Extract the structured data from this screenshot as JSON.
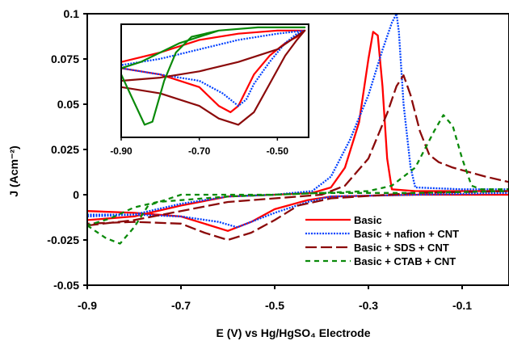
{
  "chart_data": {
    "type": "line",
    "title": "",
    "xlabel": "E (V) vs Hg/HgSO₄ Electrode",
    "ylabel": "J (Acm⁻²)",
    "xlim": [
      -0.9,
      0.0
    ],
    "ylim": [
      -0.05,
      0.1
    ],
    "xticks": [
      "-0.9",
      "-0.7",
      "-0.5",
      "-0.3",
      "-0.1"
    ],
    "yticks": [
      "-0.05",
      "-0.025",
      "0",
      "0.025",
      "0.05",
      "0.075",
      "0.1"
    ],
    "grid": false,
    "legend_position": "bottom-right",
    "series": [
      {
        "name": "Basic",
        "color": "#ff0000",
        "style": "solid",
        "forward": [
          [
            -0.9,
            -0.014
          ],
          [
            -0.8,
            -0.012
          ],
          [
            -0.7,
            -0.006
          ],
          [
            -0.6,
            -0.001
          ],
          [
            -0.5,
            0.0
          ],
          [
            -0.42,
            0.001
          ],
          [
            -0.38,
            0.004
          ],
          [
            -0.35,
            0.015
          ],
          [
            -0.32,
            0.04
          ],
          [
            -0.3,
            0.075
          ],
          [
            -0.29,
            0.09
          ],
          [
            -0.28,
            0.088
          ],
          [
            -0.27,
            0.06
          ],
          [
            -0.26,
            0.02
          ],
          [
            -0.25,
            0.003
          ],
          [
            -0.2,
            0.002
          ],
          [
            -0.1,
            0.002
          ],
          [
            0.0,
            0.002
          ]
        ],
        "reverse": [
          [
            0.0,
            0.0
          ],
          [
            -0.2,
            0.0
          ],
          [
            -0.38,
            -0.001
          ],
          [
            -0.43,
            -0.003
          ],
          [
            -0.5,
            -0.008
          ],
          [
            -0.55,
            -0.015
          ],
          [
            -0.6,
            -0.02
          ],
          [
            -0.65,
            -0.016
          ],
          [
            -0.7,
            -0.012
          ],
          [
            -0.8,
            -0.01
          ],
          [
            -0.9,
            -0.009
          ]
        ]
      },
      {
        "name": "Basic + nafion + CNT",
        "color": "#0040ff",
        "style": "dotted",
        "forward": [
          [
            -0.9,
            -0.012
          ],
          [
            -0.8,
            -0.011
          ],
          [
            -0.7,
            -0.005
          ],
          [
            -0.6,
            -0.001
          ],
          [
            -0.5,
            0.0
          ],
          [
            -0.42,
            0.002
          ],
          [
            -0.38,
            0.01
          ],
          [
            -0.34,
            0.03
          ],
          [
            -0.3,
            0.055
          ],
          [
            -0.27,
            0.08
          ],
          [
            -0.25,
            0.095
          ],
          [
            -0.24,
            0.1
          ],
          [
            -0.235,
            0.09
          ],
          [
            -0.225,
            0.05
          ],
          [
            -0.21,
            0.015
          ],
          [
            -0.2,
            0.004
          ],
          [
            -0.1,
            0.003
          ],
          [
            0.0,
            0.003
          ]
        ],
        "reverse": [
          [
            0.0,
            0.001
          ],
          [
            -0.2,
            0.0
          ],
          [
            -0.38,
            -0.001
          ],
          [
            -0.43,
            -0.004
          ],
          [
            -0.5,
            -0.01
          ],
          [
            -0.55,
            -0.015
          ],
          [
            -0.58,
            -0.018
          ],
          [
            -0.62,
            -0.015
          ],
          [
            -0.7,
            -0.012
          ],
          [
            -0.8,
            -0.011
          ],
          [
            -0.9,
            -0.011
          ]
        ]
      },
      {
        "name": "Basic + SDS + CNT",
        "color": "#8b0a0a",
        "style": "dashed",
        "forward": [
          [
            -0.9,
            -0.017
          ],
          [
            -0.8,
            -0.014
          ],
          [
            -0.7,
            -0.009
          ],
          [
            -0.6,
            -0.004
          ],
          [
            -0.5,
            -0.002
          ],
          [
            -0.4,
            0.0
          ],
          [
            -0.35,
            0.005
          ],
          [
            -0.3,
            0.02
          ],
          [
            -0.26,
            0.045
          ],
          [
            -0.24,
            0.06
          ],
          [
            -0.225,
            0.066
          ],
          [
            -0.21,
            0.055
          ],
          [
            -0.19,
            0.035
          ],
          [
            -0.17,
            0.022
          ],
          [
            -0.15,
            0.018
          ],
          [
            -0.12,
            0.015
          ],
          [
            -0.05,
            0.01
          ],
          [
            0.0,
            0.007
          ]
        ],
        "reverse": [
          [
            0.0,
            0.002
          ],
          [
            -0.2,
            0.001
          ],
          [
            -0.38,
            -0.002
          ],
          [
            -0.45,
            -0.006
          ],
          [
            -0.5,
            -0.014
          ],
          [
            -0.55,
            -0.021
          ],
          [
            -0.6,
            -0.025
          ],
          [
            -0.65,
            -0.021
          ],
          [
            -0.7,
            -0.016
          ],
          [
            -0.8,
            -0.015
          ],
          [
            -0.9,
            -0.016
          ]
        ]
      },
      {
        "name": "Basic + CTAB + CNT",
        "color": "#0a8a0a",
        "style": "dashed-short",
        "forward": [
          [
            -0.9,
            -0.017
          ],
          [
            -0.86,
            -0.024
          ],
          [
            -0.83,
            -0.027
          ],
          [
            -0.8,
            -0.018
          ],
          [
            -0.77,
            -0.006
          ],
          [
            -0.7,
            0.0
          ],
          [
            -0.6,
            0.0
          ],
          [
            -0.5,
            0.0
          ],
          [
            -0.4,
            0.001
          ],
          [
            -0.3,
            0.002
          ],
          [
            -0.25,
            0.005
          ],
          [
            -0.2,
            0.015
          ],
          [
            -0.16,
            0.035
          ],
          [
            -0.14,
            0.044
          ],
          [
            -0.12,
            0.038
          ],
          [
            -0.1,
            0.02
          ],
          [
            -0.08,
            0.005
          ],
          [
            -0.06,
            0.003
          ],
          [
            0.0,
            0.003
          ]
        ],
        "reverse": [
          [
            0.0,
            0.002
          ],
          [
            -0.2,
            0.001
          ],
          [
            -0.4,
            0.001
          ],
          [
            -0.5,
            0.0
          ],
          [
            -0.6,
            -0.001
          ],
          [
            -0.7,
            -0.003
          ],
          [
            -0.75,
            -0.004
          ],
          [
            -0.8,
            -0.007
          ],
          [
            -0.85,
            -0.013
          ],
          [
            -0.9,
            -0.017
          ]
        ]
      }
    ],
    "inset": {
      "xlim": [
        -0.9,
        -0.42
      ],
      "ylim": [
        -0.032,
        0.004
      ],
      "xticks": [
        "-0.90",
        "-0.70",
        "-0.50"
      ],
      "series": [
        {
          "name": "Basic",
          "color": "#ff0000",
          "style": "solid",
          "points": [
            [
              -0.9,
              -0.01
            ],
            [
              -0.8,
              -0.012
            ],
            [
              -0.7,
              -0.016
            ],
            [
              -0.65,
              -0.022
            ],
            [
              -0.62,
              -0.024
            ],
            [
              -0.6,
              -0.022
            ],
            [
              -0.56,
              -0.012
            ],
            [
              -0.52,
              -0.006
            ],
            [
              -0.48,
              -0.002
            ],
            [
              -0.45,
              0.0
            ],
            [
              -0.43,
              0.002
            ],
            [
              -0.5,
              0.002
            ],
            [
              -0.6,
              0.001
            ],
            [
              -0.7,
              -0.001
            ],
            [
              -0.8,
              -0.005
            ],
            [
              -0.9,
              -0.008
            ]
          ]
        },
        {
          "name": "Basic + nafion + CNT",
          "color": "#0040ff",
          "style": "dotted",
          "points": [
            [
              -0.9,
              -0.01
            ],
            [
              -0.8,
              -0.012
            ],
            [
              -0.7,
              -0.014
            ],
            [
              -0.64,
              -0.018
            ],
            [
              -0.6,
              -0.022
            ],
            [
              -0.58,
              -0.02
            ],
            [
              -0.56,
              -0.015
            ],
            [
              -0.52,
              -0.008
            ],
            [
              -0.48,
              -0.002
            ],
            [
              -0.45,
              0.001
            ],
            [
              -0.43,
              0.002
            ],
            [
              -0.5,
              0.001
            ],
            [
              -0.6,
              -0.001
            ],
            [
              -0.7,
              -0.004
            ],
            [
              -0.8,
              -0.007
            ],
            [
              -0.9,
              -0.009
            ]
          ]
        },
        {
          "name": "Basic + SDS + CNT",
          "color": "#8b0a0a",
          "style": "solid",
          "points": [
            [
              -0.9,
              -0.016
            ],
            [
              -0.8,
              -0.018
            ],
            [
              -0.7,
              -0.022
            ],
            [
              -0.65,
              -0.026
            ],
            [
              -0.6,
              -0.028
            ],
            [
              -0.56,
              -0.024
            ],
            [
              -0.52,
              -0.015
            ],
            [
              -0.48,
              -0.006
            ],
            [
              -0.45,
              -0.001
            ],
            [
              -0.43,
              0.002
            ],
            [
              -0.5,
              -0.004
            ],
            [
              -0.6,
              -0.008
            ],
            [
              -0.7,
              -0.011
            ],
            [
              -0.8,
              -0.013
            ],
            [
              -0.9,
              -0.014
            ]
          ]
        },
        {
          "name": "Basic + CTAB + CNT",
          "color": "#0a8a0a",
          "style": "solid",
          "points": [
            [
              -0.9,
              -0.012
            ],
            [
              -0.87,
              -0.02
            ],
            [
              -0.84,
              -0.028
            ],
            [
              -0.82,
              -0.027
            ],
            [
              -0.79,
              -0.014
            ],
            [
              -0.76,
              -0.005
            ],
            [
              -0.72,
              0.0
            ],
            [
              -0.65,
              0.002
            ],
            [
              -0.55,
              0.003
            ],
            [
              -0.45,
              0.003
            ],
            [
              -0.43,
              0.003
            ],
            [
              -0.55,
              0.003
            ],
            [
              -0.65,
              0.002
            ],
            [
              -0.75,
              -0.002
            ],
            [
              -0.85,
              -0.008
            ],
            [
              -0.9,
              -0.01
            ]
          ]
        }
      ]
    }
  }
}
